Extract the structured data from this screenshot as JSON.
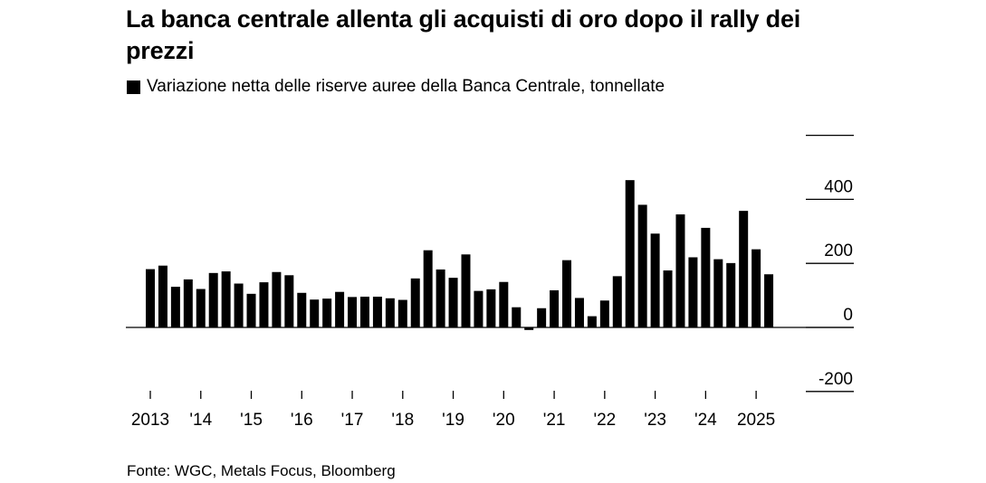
{
  "title": "La banca centrale allenta gli acquisti di oro dopo il rally dei prezzi",
  "legend": {
    "label": "Variazione netta delle riserve auree della Banca Centrale, tonnellate",
    "color": "#000000"
  },
  "source": "Fonte: WGC, Metals Focus, Bloomberg",
  "chart_data": {
    "type": "bar",
    "title": "La banca centrale allenta gli acquisti di oro dopo il rally dei prezzi",
    "subtitle": "Variazione netta delle riserve auree della Banca Centrale, tonnellate",
    "xlabel": "",
    "ylabel": "tonnellate",
    "ylim": [
      -200,
      600
    ],
    "yticks": [
      -200,
      0,
      200,
      400
    ],
    "grid": false,
    "legend_position": "top-left",
    "bar_color": "#000000",
    "x_tick_labels": [
      "2013",
      "'14",
      "'15",
      "'16",
      "'17",
      "'18",
      "'19",
      "'20",
      "'21",
      "'22",
      "'23",
      "'24",
      "2025"
    ],
    "categories": [
      "2013 Q1",
      "2013 Q2",
      "2013 Q3",
      "2013 Q4",
      "2014 Q1",
      "2014 Q2",
      "2014 Q3",
      "2014 Q4",
      "2015 Q1",
      "2015 Q2",
      "2015 Q3",
      "2015 Q4",
      "2016 Q1",
      "2016 Q2",
      "2016 Q3",
      "2016 Q4",
      "2017 Q1",
      "2017 Q2",
      "2017 Q3",
      "2017 Q4",
      "2018 Q1",
      "2018 Q2",
      "2018 Q3",
      "2018 Q4",
      "2019 Q1",
      "2019 Q2",
      "2019 Q3",
      "2019 Q4",
      "2020 Q1",
      "2020 Q2",
      "2020 Q3",
      "2020 Q4",
      "2021 Q1",
      "2021 Q2",
      "2021 Q3",
      "2021 Q4",
      "2022 Q1",
      "2022 Q2",
      "2022 Q3",
      "2022 Q4",
      "2023 Q1",
      "2023 Q2",
      "2023 Q3",
      "2023 Q4",
      "2024 Q1",
      "2024 Q2",
      "2024 Q3",
      "2024 Q4",
      "2025 Q1",
      "2025 Q2"
    ],
    "values": [
      182,
      193,
      127,
      150,
      120,
      170,
      175,
      137,
      105,
      141,
      173,
      163,
      108,
      87,
      90,
      111,
      95,
      96,
      96,
      91,
      86,
      153,
      241,
      181,
      155,
      228,
      114,
      119,
      142,
      63,
      -8,
      60,
      116,
      210,
      92,
      35,
      84,
      160,
      460,
      383,
      293,
      178,
      353,
      219,
      311,
      213,
      201,
      364,
      244,
      166
    ]
  }
}
